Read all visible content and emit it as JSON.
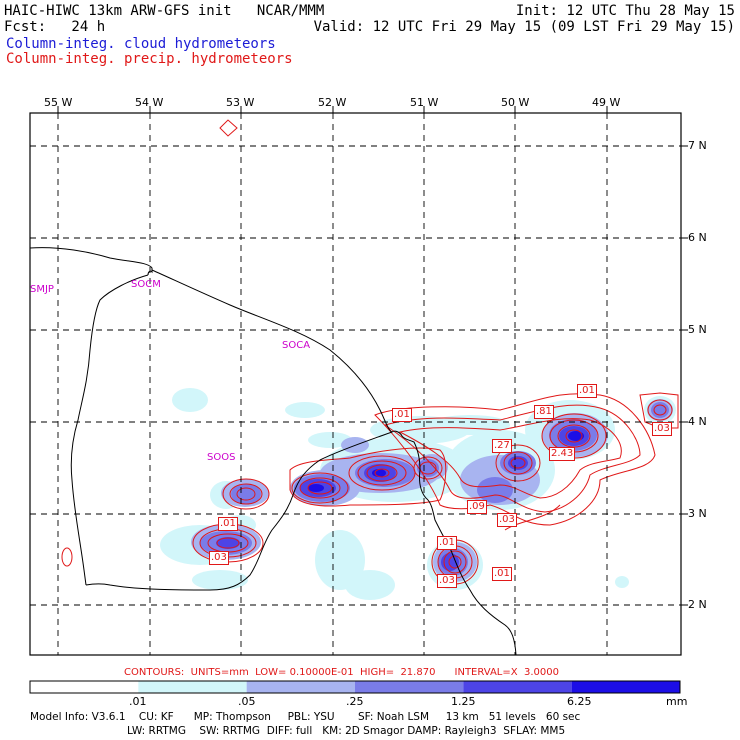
{
  "header": {
    "title_left": "HAIC-HIWC 13km ARW-GFS init   NCAR/MMM",
    "fcst": "Fcst:   24 h",
    "init": "Init: 12 UTC Thu 28 May 15",
    "valid": "Valid: 12 UTC Fri 29 May 15 (09 LST Fri 29 May 15)",
    "legend_cloud": "Column-integ. cloud hydrometeors",
    "legend_precip": "Column-integ. precip. hydrometeors"
  },
  "colors": {
    "cloud_levels": [
      "#ffffff",
      "#d2f6fa",
      "#a8b4f0",
      "#7a7ce8",
      "#4d44e6",
      "#1c0ee6"
    ],
    "precip_contour": "#e01818",
    "cloud_label": "#1c1cd6",
    "station_label": "#cc00cc"
  },
  "map": {
    "lon_labels": [
      "55 W",
      "54 W",
      "53 W",
      "52 W",
      "51 W",
      "50 W",
      "49 W"
    ],
    "lat_labels": [
      "7 N",
      "6 N",
      "5 N",
      "4 N",
      "3 N",
      "2 N"
    ],
    "stations": [
      "SMJP",
      "SOCM",
      "SOCA",
      "SOOS"
    ],
    "contour_labels": [
      ".01",
      ".81",
      ".01",
      ".27",
      "2.43",
      ".03",
      ".01",
      ".09",
      ".03",
      ".01",
      ".03",
      ".01",
      ".03"
    ]
  },
  "contour_info": "CONTOURS:  UNITS=mm  LOW= 0.10000E-01  HIGH=  21.870      INTERVAL=X  3.0000",
  "colorbar": {
    "ticks": [
      ".01",
      ".05",
      ".25",
      "1.25",
      "6.25"
    ],
    "units": "mm"
  },
  "footer": {
    "line1": "Model Info: V3.6.1    CU: KF      MP: Thompson     PBL: YSU       SF: Noah LSM     13 km   51 levels   60 sec",
    "line2": "LW: RRTMG    SW: RRTMG  DIFF: full   KM: 2D Smagor DAMP: Rayleigh3  SFLAY: MM5"
  }
}
